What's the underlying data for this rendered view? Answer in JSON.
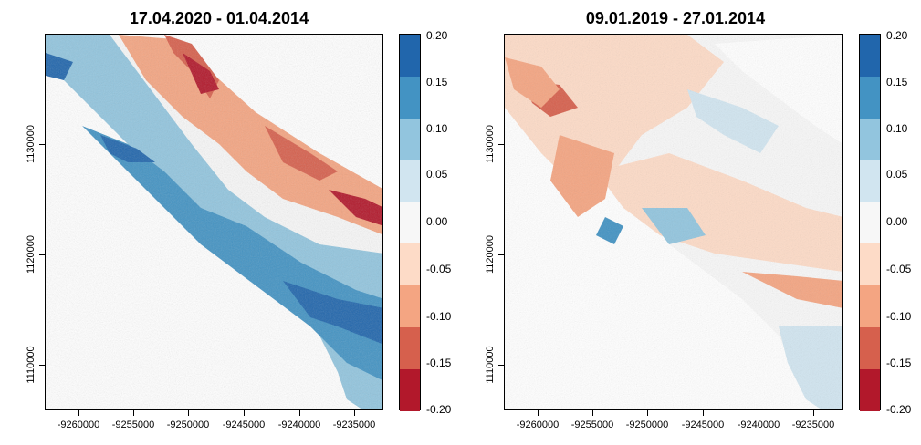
{
  "panels": [
    {
      "title": "17.04.2020 - 01.04.2014",
      "x_ticks": [
        "-9260000",
        "-9255000",
        "-9250000",
        "-9245000",
        "-9240000",
        "-9235000"
      ],
      "y_ticks": [
        "1130000",
        "1120000",
        "1110000"
      ]
    },
    {
      "title": "09.01.2019 - 27.01.2014",
      "x_ticks": [
        "-9260000",
        "-9255000",
        "-9250000",
        "-9245000",
        "-9240000",
        "-9235000"
      ],
      "y_ticks": [
        "1130000",
        "1120000",
        "1110000"
      ]
    }
  ],
  "colorbar": {
    "labels": [
      "0.20",
      "0.15",
      "0.10",
      "0.05",
      "0.00",
      "-0.05",
      "-0.10",
      "-0.15",
      "-0.20"
    ],
    "colors": [
      "#2166ac",
      "#4393c3",
      "#92c5de",
      "#d1e5f0",
      "#f7f7f7",
      "#fddbc7",
      "#f4a582",
      "#d6604d",
      "#b2182b"
    ]
  }
}
